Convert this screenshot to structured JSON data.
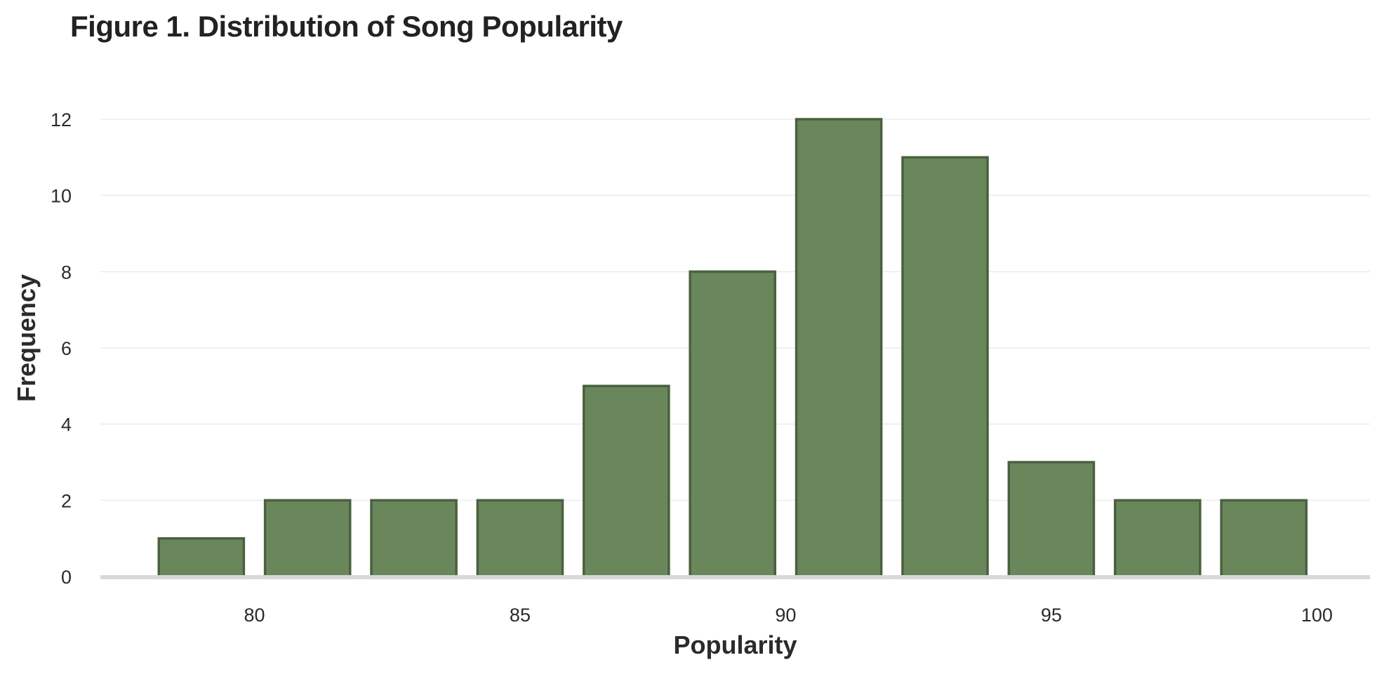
{
  "chart_data": {
    "type": "bar",
    "title": "Figure 1. Distribution of Song Popularity",
    "xlabel": "Popularity",
    "ylabel": "Frequency",
    "bins": [
      {
        "x0": 78,
        "x1": 80,
        "value": 1
      },
      {
        "x0": 80,
        "x1": 82,
        "value": 2
      },
      {
        "x0": 82,
        "x1": 84,
        "value": 2
      },
      {
        "x0": 84,
        "x1": 86,
        "value": 2
      },
      {
        "x0": 86,
        "x1": 88,
        "value": 5
      },
      {
        "x0": 88,
        "x1": 90,
        "value": 8
      },
      {
        "x0": 90,
        "x1": 92,
        "value": 12
      },
      {
        "x0": 92,
        "x1": 94,
        "value": 11
      },
      {
        "x0": 94,
        "x1": 96,
        "value": 3
      },
      {
        "x0": 96,
        "x1": 98,
        "value": 2
      },
      {
        "x0": 98,
        "x1": 100,
        "value": 2
      }
    ],
    "xticks": [
      80,
      85,
      90,
      95,
      100
    ],
    "yticks": [
      0,
      2,
      4,
      6,
      8,
      10,
      12
    ],
    "xlim": [
      77.1,
      101
    ],
    "ylim": [
      0,
      12
    ],
    "grid": "horizontal",
    "colors": {
      "bar_fill": "#6a875b",
      "bar_edge": "#4a6140",
      "grid": "#ebebeb",
      "baseline": "#d8d8d8"
    }
  }
}
